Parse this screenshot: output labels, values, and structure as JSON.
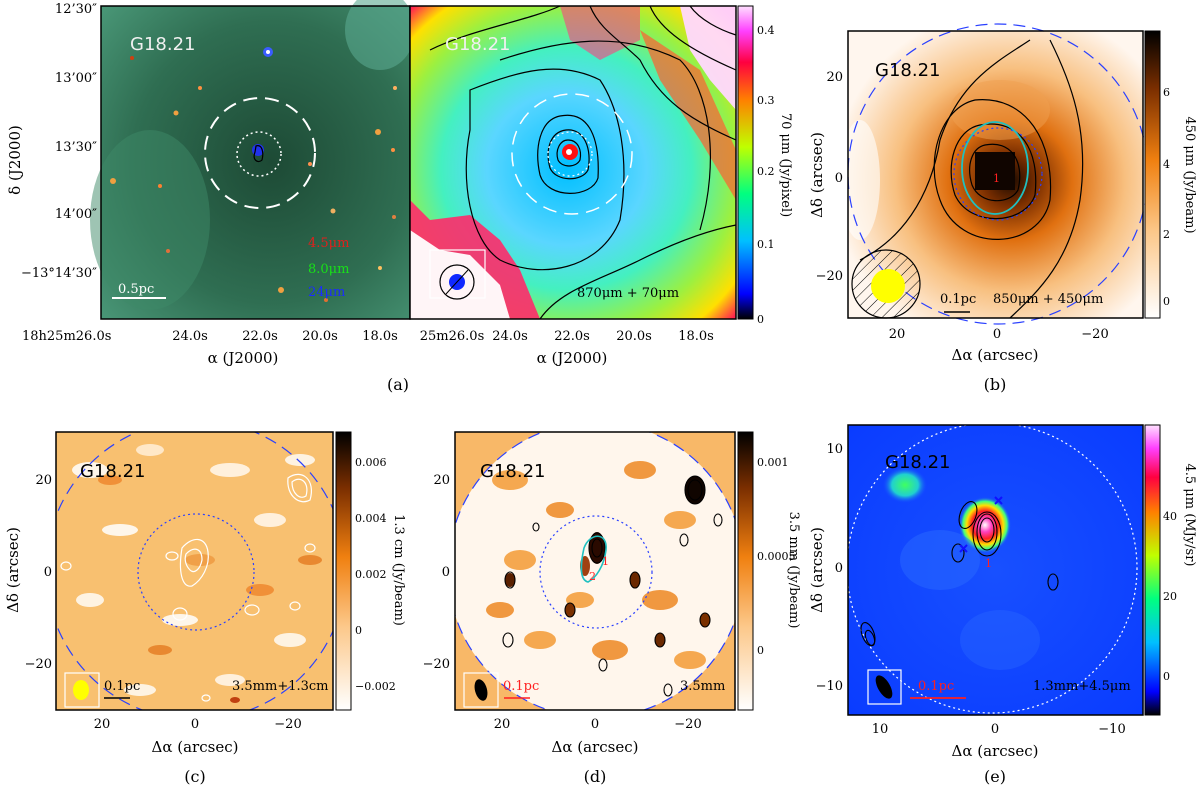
{
  "figure": {
    "source_name": "G18.21",
    "captions": [
      "(a)",
      "(b)",
      "(c)",
      "(d)",
      "(e)"
    ]
  },
  "panel_a_left": {
    "y_ticks": [
      "12’30″",
      "13’00″",
      "13’30″",
      "14’00″",
      "−13°14’30″"
    ],
    "x_ticks": [
      "18h25m26.0s",
      "24.0s",
      "22.0s",
      "20.0s",
      "18.0s"
    ],
    "y_label": "δ (J2000)",
    "x_label": "α (J2000)",
    "legend": [
      {
        "text": "4.5μm",
        "color": "#e0201c"
      },
      {
        "text": "8.0μm",
        "color": "#18e018"
      },
      {
        "text": "24μm",
        "color": "#1a2cff"
      }
    ],
    "scalebar_label": "0.5pc"
  },
  "panel_a_right": {
    "x_ticks": [
      "25m26.0s",
      "24.0s",
      "22.0s",
      "20.0s",
      "18.0s"
    ],
    "x_label": "α (J2000)",
    "bands_label": "870μm + 70μm",
    "colorbar_label": "70 μm (Jy/pixel)",
    "colorbar_ticks": [
      "0.4",
      "0.3",
      "0.2",
      "0.1",
      "0"
    ]
  },
  "panel_b": {
    "y_ticks": [
      "20",
      "0",
      "−20"
    ],
    "x_ticks": [
      "20",
      "0",
      "−20"
    ],
    "y_label": "Δδ (arcsec)",
    "x_label": "Δα (arcsec)",
    "colorbar_label": "450 μm (Jy/beam)",
    "colorbar_ticks": [
      "6",
      "4",
      "2",
      "0"
    ],
    "scalebar_label": "0.1pc",
    "bands_label": "850μm + 450μm",
    "core_label": "1"
  },
  "panel_c": {
    "y_ticks": [
      "20",
      "0",
      "−20"
    ],
    "x_ticks": [
      "20",
      "0",
      "−20"
    ],
    "y_label": "Δδ (arcsec)",
    "x_label": "Δα (arcsec)",
    "colorbar_label": "1.3 cm (Jy/beam)",
    "colorbar_ticks": [
      "0.006",
      "0.004",
      "0.002",
      "0",
      "−0.002"
    ],
    "scalebar_label": "0.1pc",
    "bands_label": "3.5mm+1.3cm"
  },
  "panel_d": {
    "y_ticks": [
      "20",
      "0",
      "−20"
    ],
    "x_ticks": [
      "20",
      "0",
      "−20"
    ],
    "x_label": "Δα (arcsec)",
    "colorbar_label": "3.5 mm (Jy/beam)",
    "colorbar_ticks": [
      "0.001",
      "0.0005",
      "0"
    ],
    "scalebar_label": "0.1pc",
    "bands_label": "3.5mm",
    "core_labels": [
      "1",
      "2"
    ]
  },
  "panel_e": {
    "y_ticks": [
      "10",
      "0",
      "−10"
    ],
    "x_ticks": [
      "10",
      "0",
      "−10"
    ],
    "y_label": "Δδ (arcsec)",
    "x_label": "Δα (arcsec)",
    "colorbar_label": "4.5 μm (MJy/sr)",
    "colorbar_ticks": [
      "40",
      "20",
      "0"
    ],
    "scalebar_label": "0.1pc",
    "bands_label": "1.3mm+4.5μm",
    "core_label": "1"
  }
}
